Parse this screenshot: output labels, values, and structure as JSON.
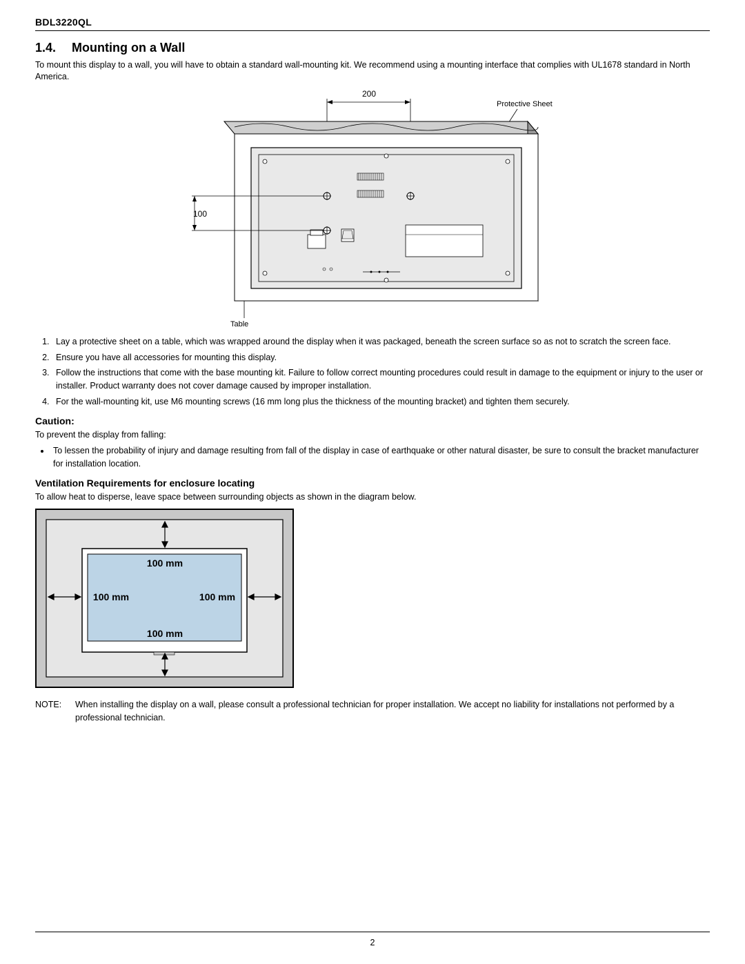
{
  "header": {
    "model": "BDL3220QL"
  },
  "section": {
    "number": "1.4.",
    "title": "Mounting on a Wall"
  },
  "intro": "To mount this display to a wall, you will have to obtain a standard wall-mounting kit. We recommend using a mounting interface that complies with UL1678 standard in North America.",
  "diagram1": {
    "dim_horizontal": "200",
    "dim_vertical": "100",
    "label_protective_sheet": "Protective Sheet",
    "label_table": "Table",
    "colors": {
      "outer_top": "#cfcfcf",
      "outer_side": "#9a9a9a",
      "face": "#ffffff",
      "inner_fill": "#e9e9e9",
      "stroke": "#000000"
    },
    "dim_font_size": 12,
    "label_font_size": 11
  },
  "instructions_list": [
    "Lay a protective sheet on a table, which was wrapped around the display when it was packaged, beneath the screen surface so as not to scratch the screen face.",
    "Ensure you have all accessories for mounting this display.",
    "Follow the instructions that come with the base mounting kit. Failure to follow correct mounting procedures could result in damage to the equipment or injury to the user or installer. Product warranty does not cover damage caused by improper installation.",
    "For the wall-mounting kit, use M6 mounting screws (16 mm long plus the thickness of the mounting bracket) and tighten them securely."
  ],
  "caution": {
    "heading": "Caution:",
    "lead": "To prevent the display from falling:",
    "bullets": [
      "To lessen the probability of injury and damage resulting from fall of the display in case of earthquake or other natural disaster, be sure to consult the bracket manufacturer for installation location."
    ]
  },
  "ventilation": {
    "heading": "Ventilation Requirements for enclosure locating",
    "lead": "To allow heat to disperse, leave space between surrounding objects as shown in the diagram below."
  },
  "diagram2": {
    "gap_label": "100 mm",
    "colors": {
      "wall_outer": "#c8c8c8",
      "wall_inner": "#e6e6e6",
      "screen_fill": "#bcd4e6",
      "stroke": "#000000",
      "text": "#000000"
    },
    "label_font_size": 14
  },
  "note": {
    "label": "NOTE:",
    "text": "When installing the display on a wall, please consult a professional technician for proper installation. We accept no liability for installations not performed by a professional technician."
  },
  "page_number": "2"
}
